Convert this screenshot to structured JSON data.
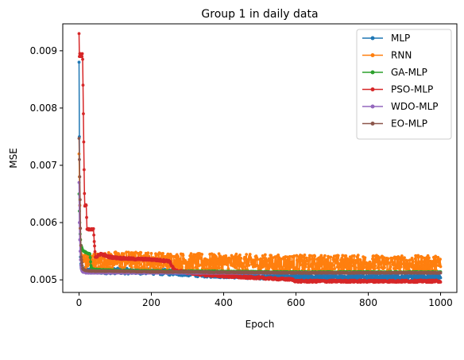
{
  "chart_data": {
    "type": "line",
    "title": "Group 1 in daily data",
    "xlabel": "Epoch",
    "ylabel": "MSE",
    "xlim": [
      -45,
      1045
    ],
    "ylim": [
      0.00478,
      0.00947
    ],
    "xticks": [
      0,
      200,
      400,
      600,
      800,
      1000
    ],
    "xtick_labels": [
      "0",
      "200",
      "400",
      "600",
      "800",
      "1000"
    ],
    "yticks": [
      0.005,
      0.006,
      0.007,
      0.008,
      0.009
    ],
    "ytick_labels": [
      "0.005",
      "0.006",
      "0.007",
      "0.008",
      "0.009"
    ],
    "grid": false,
    "legend_position": "top-right",
    "series": [
      {
        "name": "MLP",
        "color": "#1f77b4",
        "x": [
          0,
          1,
          2,
          3,
          4,
          5,
          6,
          8,
          10,
          12,
          15,
          20,
          30,
          50,
          100,
          200,
          300,
          350,
          400,
          450,
          500,
          550,
          600,
          700,
          800,
          900,
          1000
        ],
        "y": [
          0.0088,
          0.0075,
          0.0063,
          0.0057,
          0.0054,
          0.00528,
          0.00522,
          0.00519,
          0.00517,
          0.00516,
          0.00515,
          0.00514,
          0.00514,
          0.00514,
          0.00514,
          0.00513,
          0.0051,
          0.00508,
          0.00507,
          0.00506,
          0.00505,
          0.00504,
          0.00503,
          0.00503,
          0.00503,
          0.00503,
          0.00503
        ],
        "noise": 5e-05
      },
      {
        "name": "RNN",
        "color": "#ff7f0e",
        "x": [
          0,
          1,
          2,
          3,
          4,
          5,
          6,
          8,
          10,
          12,
          15,
          20,
          30,
          50,
          80,
          100,
          150,
          200,
          250,
          300,
          400,
          500,
          600,
          700,
          800,
          900,
          1000
        ],
        "y": [
          0.0072,
          0.0068,
          0.0063,
          0.0059,
          0.0057,
          0.0055,
          0.00545,
          0.00538,
          0.00535,
          0.00532,
          0.0053,
          0.00529,
          0.00528,
          0.00528,
          0.00529,
          0.0053,
          0.0053,
          0.00529,
          0.00528,
          0.00527,
          0.00526,
          0.00525,
          0.00524,
          0.00524,
          0.00524,
          0.00523,
          0.00523
        ],
        "noise": 0.00015
      },
      {
        "name": "GA-MLP",
        "color": "#2ca02c",
        "x": [
          0,
          1,
          2,
          3,
          4,
          5,
          6,
          8,
          10,
          12,
          15,
          18,
          20,
          25,
          30,
          33,
          35,
          40,
          60,
          100,
          200,
          400,
          600,
          800,
          1000
        ],
        "y": [
          0.0065,
          0.0062,
          0.006,
          0.0058,
          0.0057,
          0.0056,
          0.0056,
          0.00556,
          0.00552,
          0.0055,
          0.00549,
          0.00548,
          0.00547,
          0.00546,
          0.00545,
          0.00525,
          0.0052,
          0.00518,
          0.00517,
          0.00516,
          0.00515,
          0.00514,
          0.00513,
          0.00513,
          0.00513
        ],
        "noise": 1e-05
      },
      {
        "name": "PSO-MLP",
        "color": "#d62728",
        "x": [
          0,
          1,
          2,
          3,
          4,
          5,
          6,
          7,
          8,
          9,
          10,
          11,
          12,
          13,
          14,
          15,
          16,
          17,
          18,
          20,
          22,
          25,
          28,
          30,
          35,
          40,
          45,
          50,
          60,
          80,
          100,
          120,
          150,
          200,
          250,
          260,
          265,
          300,
          350,
          400,
          450,
          500,
          550,
          590,
          600,
          700,
          800,
          900,
          1000
        ],
        "y": [
          0.0093,
          0.0089,
          0.00895,
          0.0089,
          0.00895,
          0.0089,
          0.0089,
          0.00893,
          0.0089,
          0.00895,
          0.00885,
          0.0084,
          0.0079,
          0.0074,
          0.0069,
          0.0065,
          0.0063,
          0.0063,
          0.0063,
          0.0063,
          0.00587,
          0.00587,
          0.00587,
          0.00587,
          0.00587,
          0.00587,
          0.0054,
          0.0054,
          0.00545,
          0.0054,
          0.00538,
          0.00537,
          0.00536,
          0.00535,
          0.00532,
          0.0052,
          0.00516,
          0.00512,
          0.00508,
          0.00506,
          0.00504,
          0.00503,
          0.00501,
          0.005,
          0.00497,
          0.00497,
          0.00497,
          0.00497,
          0.00497
        ],
        "noise": 2e-05
      },
      {
        "name": "WDO-MLP",
        "color": "#9467bd",
        "x": [
          0,
          1,
          2,
          3,
          4,
          5,
          6,
          8,
          10,
          12,
          15,
          20,
          40,
          100,
          200,
          400,
          600,
          800,
          1000
        ],
        "y": [
          0.0067,
          0.006,
          0.0057,
          0.0055,
          0.00535,
          0.00525,
          0.0052,
          0.00516,
          0.00514,
          0.00513,
          0.00513,
          0.00512,
          0.00512,
          0.00512,
          0.00512,
          0.00512,
          0.00512,
          0.00512,
          0.00512
        ],
        "noise": 5e-06
      },
      {
        "name": "EO-MLP",
        "color": "#8c564b",
        "x": [
          0,
          1,
          2,
          3,
          4,
          5,
          6,
          8,
          10,
          12,
          15,
          20,
          40,
          100,
          200,
          400,
          600,
          800,
          1000
        ],
        "y": [
          0.00747,
          0.0071,
          0.0068,
          0.0064,
          0.0059,
          0.0056,
          0.0054,
          0.0053,
          0.0052,
          0.00518,
          0.00517,
          0.00516,
          0.00515,
          0.00515,
          0.00514,
          0.00513,
          0.00512,
          0.00512,
          0.00512
        ],
        "noise": 8e-06
      }
    ]
  }
}
